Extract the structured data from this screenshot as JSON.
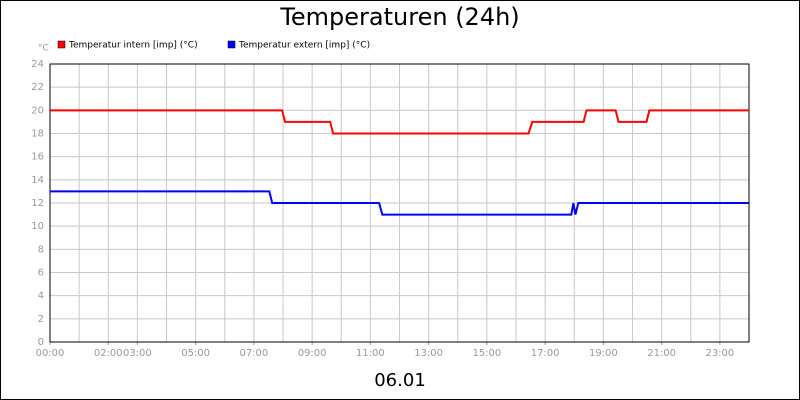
{
  "chart_data": {
    "type": "line",
    "title": "Temperaturen (24h)",
    "y_unit": "°C",
    "footer": "06.01",
    "xlim": [
      0,
      24
    ],
    "xticks": [
      {
        "value": 0,
        "label": "00:00"
      },
      {
        "value": 2,
        "label": "02:00"
      },
      {
        "value": 3,
        "label": "03:00"
      },
      {
        "value": 5,
        "label": "05:00"
      },
      {
        "value": 7,
        "label": "07:00"
      },
      {
        "value": 9,
        "label": "09:00"
      },
      {
        "value": 11,
        "label": "11:00"
      },
      {
        "value": 13,
        "label": "13:00"
      },
      {
        "value": 15,
        "label": "15:00"
      },
      {
        "value": 17,
        "label": "17:00"
      },
      {
        "value": 19,
        "label": "19:00"
      },
      {
        "value": 21,
        "label": "21:00"
      },
      {
        "value": 23,
        "label": "23:00"
      }
    ],
    "ylim": [
      0,
      24
    ],
    "yticks": [
      0,
      2,
      4,
      6,
      8,
      10,
      12,
      14,
      16,
      18,
      20,
      22,
      24
    ],
    "grid": true,
    "x_grid_step": 1,
    "series": [
      {
        "name": "Temperatur intern [imp] (°C)",
        "color": "#ff0000",
        "x": [
          0,
          7.97,
          8.07,
          9.62,
          9.72,
          16.43,
          16.56,
          18.32,
          18.42,
          19.42,
          19.52,
          20.48,
          20.58,
          24
        ],
        "values": [
          20,
          20,
          19,
          19,
          18,
          18,
          19,
          19,
          20,
          20,
          19,
          19,
          20,
          20
        ]
      },
      {
        "name": "Temperatur extern [imp] (°C)",
        "color": "#0000ff",
        "x": [
          0,
          7.53,
          7.63,
          11.3,
          11.41,
          17.9,
          17.97,
          18.04,
          18.14,
          24
        ],
        "values": [
          13,
          13,
          12,
          12,
          11,
          11,
          12,
          11,
          12,
          12
        ]
      }
    ]
  }
}
